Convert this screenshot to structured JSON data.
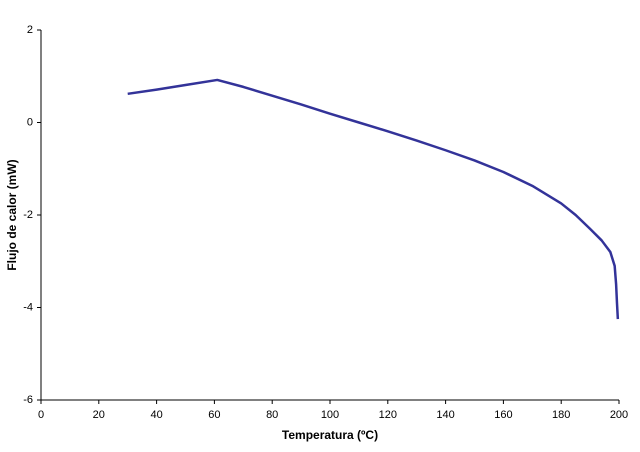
{
  "chart_data": {
    "type": "line",
    "x_label": "Temperatura (ºC)",
    "y_label": "Flujo de calor (mW)",
    "xlim": [
      0,
      200
    ],
    "xticks": [
      0,
      20,
      40,
      60,
      80,
      100,
      120,
      140,
      160,
      180,
      200
    ],
    "ylim": [
      -6,
      2
    ],
    "yticks": [
      -6,
      -4,
      -2,
      0,
      2
    ],
    "grid": false,
    "series": [
      {
        "color": "#333399",
        "x": [
          30,
          40,
          50,
          61,
          70,
          80,
          90,
          100,
          110,
          120,
          130,
          140,
          150,
          160,
          170,
          180,
          185,
          190,
          194,
          197,
          198.5,
          199,
          199.3,
          199.6
        ],
        "values": [
          0.62,
          0.71,
          0.81,
          0.92,
          0.77,
          0.58,
          0.39,
          0.19,
          0.0,
          -0.19,
          -0.39,
          -0.6,
          -0.82,
          -1.07,
          -1.37,
          -1.75,
          -2.0,
          -2.3,
          -2.55,
          -2.8,
          -3.1,
          -3.5,
          -3.9,
          -4.25
        ]
      }
    ]
  }
}
